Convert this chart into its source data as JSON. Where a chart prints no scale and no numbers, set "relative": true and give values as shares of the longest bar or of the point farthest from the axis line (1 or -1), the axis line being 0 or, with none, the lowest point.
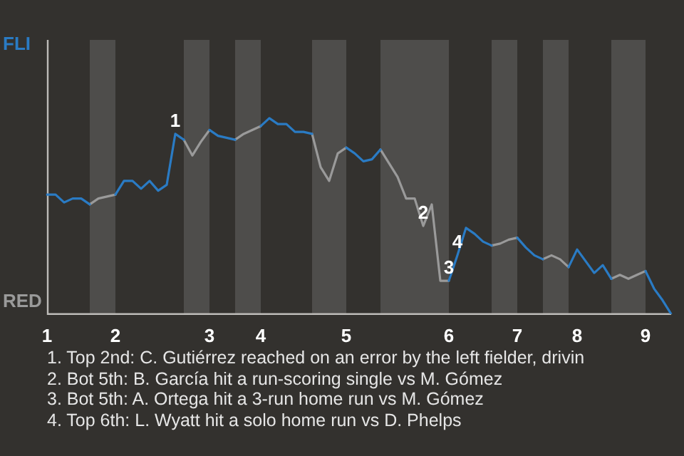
{
  "chart_data": {
    "type": "line",
    "relative": true,
    "categories": [
      "1",
      null,
      null,
      null,
      null,
      null,
      null,
      null,
      "2",
      null,
      null,
      null,
      null,
      null,
      null,
      null,
      null,
      null,
      null,
      "3",
      null,
      null,
      null,
      null,
      null,
      "4",
      null,
      null,
      null,
      null,
      null,
      null,
      null,
      null,
      null,
      "5",
      null,
      null,
      null,
      null,
      null,
      null,
      null,
      null,
      null,
      null,
      null,
      "6",
      null,
      null,
      null,
      null,
      null,
      null,
      null,
      "7",
      null,
      null,
      null,
      null,
      null,
      null,
      "8",
      null,
      null,
      null,
      null,
      null,
      null,
      null,
      "9",
      null,
      null,
      null
    ],
    "series": [
      {
        "color": "#2a7bc4",
        "values": [
          0.61,
          0.61,
          0.57,
          0.59,
          0.59,
          0.56,
          null,
          null,
          0.61,
          0.68,
          0.68,
          0.64,
          0.68,
          0.63,
          0.66,
          0.92,
          0.89,
          null,
          null,
          0.94,
          0.91,
          0.9,
          0.89,
          null,
          null,
          0.96,
          1,
          0.97,
          0.97,
          0.93,
          0.93,
          0.92,
          null,
          null,
          null,
          0.85,
          0.82,
          0.78,
          0.79,
          0.84,
          null,
          null,
          null,
          null,
          null,
          null,
          null,
          0.17,
          0.3,
          0.44,
          0.41,
          0.37,
          0.35,
          null,
          null,
          0.39,
          0.34,
          0.3,
          0.28,
          null,
          null,
          0.24,
          0.33,
          0.27,
          0.21,
          0.25,
          0.18,
          null,
          null,
          null,
          0.22,
          0.13,
          0.07,
          0
        ]
      },
      {
        "color": "#9a9a9a",
        "values": [
          null,
          null,
          null,
          null,
          null,
          0.56,
          0.59,
          0.6,
          0.61,
          null,
          null,
          null,
          null,
          null,
          null,
          null,
          0.89,
          0.81,
          0.88,
          0.94,
          null,
          null,
          0.89,
          0.92,
          0.94,
          0.96,
          null,
          null,
          null,
          null,
          null,
          0.92,
          0.75,
          0.68,
          0.82,
          0.85,
          null,
          null,
          null,
          0.84,
          0.77,
          0.7,
          0.59,
          0.59,
          0.45,
          0.56,
          0.17,
          0.17,
          null,
          null,
          null,
          null,
          0.35,
          0.36,
          0.38,
          0.39,
          null,
          null,
          0.28,
          0.3,
          0.28,
          0.24,
          null,
          null,
          null,
          null,
          0.18,
          0.2,
          0.18,
          0.2,
          0.22,
          null,
          null,
          null
        ]
      }
    ],
    "legend": false,
    "marker": "none",
    "line_style": "solid",
    "annotations": [
      "FLI",
      "RED",
      {
        "text": "1",
        "y": 0.92
      },
      {
        "text": "2",
        "y": 0.45
      },
      {
        "text": "3",
        "y": 0.17
      },
      {
        "text": "4",
        "y": 0.3
      },
      "1. Top 2nd: C. Gutiérrez reached on an error by the left fielder, drivin",
      "2. Bot 5th: B. García hit a run-scoring single vs M. Gómez",
      "3. Bot 5th: A. Ortega hit a 3-run home run vs M. Gómez",
      "4. Top 6th: L. Wyatt hit a solo home run vs D. Phelps"
    ]
  }
}
